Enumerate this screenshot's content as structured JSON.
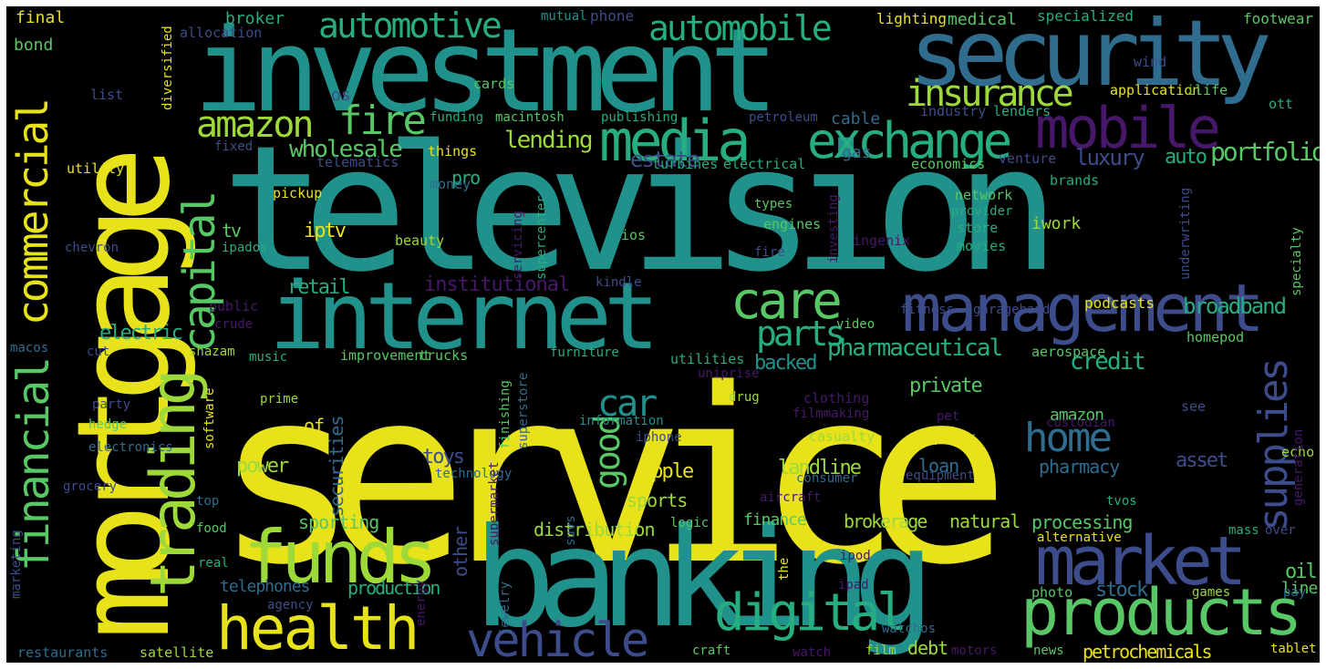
{
  "palette": {
    "background": "#000000",
    "yellow": "#e8e21a",
    "lime": "#9ed93a",
    "green": "#58c765",
    "aqua": "#26ad81",
    "teal": "#21918c",
    "blue": "#2f6c8e",
    "indigo": "#3d4c8a",
    "purple": "#471769"
  },
  "words": [
    {
      "text": "service",
      "color": "yellow"
    },
    {
      "text": "television",
      "color": "teal"
    },
    {
      "text": "mortgage",
      "color": "yellow"
    },
    {
      "text": "investment",
      "color": "teal"
    },
    {
      "text": "banking",
      "color": "teal"
    },
    {
      "text": "internet",
      "color": "teal"
    },
    {
      "text": "security",
      "color": "blue"
    },
    {
      "text": "management",
      "color": "indigo"
    },
    {
      "text": "products",
      "color": "green"
    },
    {
      "text": "funds",
      "color": "lime"
    },
    {
      "text": "market",
      "color": "indigo"
    },
    {
      "text": "health",
      "color": "yellow"
    },
    {
      "text": "trading",
      "color": "lime"
    },
    {
      "text": "media",
      "color": "aqua"
    },
    {
      "text": "exchange",
      "color": "aqua"
    },
    {
      "text": "mobile",
      "color": "purple"
    },
    {
      "text": "digital",
      "color": "aqua"
    },
    {
      "text": "vehicle",
      "color": "indigo"
    },
    {
      "text": "care",
      "color": "green"
    },
    {
      "text": "commercial",
      "color": "yellow"
    },
    {
      "text": "financial",
      "color": "green"
    },
    {
      "text": "capital",
      "color": "green"
    },
    {
      "text": "automotive",
      "color": "aqua"
    },
    {
      "text": "automobile",
      "color": "aqua"
    },
    {
      "text": "amazon",
      "color": "lime"
    },
    {
      "text": "fire",
      "color": "green"
    },
    {
      "text": "insurance",
      "color": "lime"
    },
    {
      "text": "home",
      "color": "blue"
    },
    {
      "text": "supplies",
      "color": "indigo"
    },
    {
      "text": "parts",
      "color": "aqua"
    },
    {
      "text": "car",
      "color": "teal"
    },
    {
      "text": "good",
      "color": "green"
    },
    {
      "text": "lending",
      "color": "lime"
    },
    {
      "text": "wholesale",
      "color": "green"
    },
    {
      "text": "pharmaceutical",
      "color": "aqua"
    },
    {
      "text": "portfolio",
      "color": "green"
    },
    {
      "text": "broadband",
      "color": "aqua"
    },
    {
      "text": "estate",
      "color": "indigo"
    },
    {
      "text": "luxury",
      "color": "indigo"
    },
    {
      "text": "auto",
      "color": "aqua"
    },
    {
      "text": "credit",
      "color": "aqua"
    },
    {
      "text": "institutional",
      "color": "purple"
    },
    {
      "text": "retail",
      "color": "aqua"
    },
    {
      "text": "electric",
      "color": "aqua"
    },
    {
      "text": "iptv",
      "color": "yellow"
    },
    {
      "text": "tv",
      "color": "green"
    },
    {
      "text": "pro",
      "color": "aqua"
    },
    {
      "text": "backed",
      "color": "teal"
    },
    {
      "text": "private",
      "color": "green"
    },
    {
      "text": "securities",
      "color": "blue"
    },
    {
      "text": "toys",
      "color": "indigo"
    },
    {
      "text": "apple",
      "color": "yellow"
    },
    {
      "text": "landline",
      "color": "lime"
    },
    {
      "text": "amazon",
      "color": "green"
    },
    {
      "text": "pharmacy",
      "color": "blue"
    },
    {
      "text": "asset",
      "color": "indigo"
    },
    {
      "text": "power",
      "color": "lime"
    },
    {
      "text": "sports",
      "color": "lime"
    },
    {
      "text": "loan",
      "color": "blue"
    },
    {
      "text": "debt",
      "color": "lime"
    },
    {
      "text": "sporting",
      "color": "green"
    },
    {
      "text": "distribution",
      "color": "lime"
    },
    {
      "text": "finance",
      "color": "green"
    },
    {
      "text": "brokerage",
      "color": "lime"
    },
    {
      "text": "natural",
      "color": "lime"
    },
    {
      "text": "processing",
      "color": "green"
    },
    {
      "text": "telephones",
      "color": "blue"
    },
    {
      "text": "production",
      "color": "aqua"
    },
    {
      "text": "stock",
      "color": "blue"
    },
    {
      "text": "oil",
      "color": "green"
    },
    {
      "text": "line",
      "color": "green"
    },
    {
      "text": "petrochemicals",
      "color": "yellow"
    },
    {
      "text": "of",
      "color": "yellow"
    },
    {
      "text": "other",
      "color": "indigo"
    },
    {
      "text": "broker",
      "color": "aqua"
    },
    {
      "text": "phone",
      "color": "indigo"
    },
    {
      "text": "medical",
      "color": "green"
    },
    {
      "text": "lighting",
      "color": "yellow"
    },
    {
      "text": "specialized",
      "color": "aqua"
    },
    {
      "text": "footwear",
      "color": "green"
    },
    {
      "text": "final",
      "color": "yellow"
    },
    {
      "text": "bond",
      "color": "green"
    },
    {
      "text": "mutual",
      "color": "teal"
    },
    {
      "text": "allocation",
      "color": "indigo"
    },
    {
      "text": "os",
      "color": "indigo"
    },
    {
      "text": "cards",
      "color": "green"
    },
    {
      "text": "list",
      "color": "indigo"
    },
    {
      "text": "funding",
      "color": "aqua"
    },
    {
      "text": "macintosh",
      "color": "green"
    },
    {
      "text": "publishing",
      "color": "aqua"
    },
    {
      "text": "petroleum",
      "color": "indigo"
    },
    {
      "text": "cable",
      "color": "blue"
    },
    {
      "text": "industry",
      "color": "indigo"
    },
    {
      "text": "lenders",
      "color": "aqua"
    },
    {
      "text": "application",
      "color": "yellow"
    },
    {
      "text": "ilife",
      "color": "green"
    },
    {
      "text": "wind",
      "color": "indigo"
    },
    {
      "text": "ott",
      "color": "aqua"
    },
    {
      "text": "fixed",
      "color": "indigo"
    },
    {
      "text": "things",
      "color": "yellow"
    },
    {
      "text": "telematics",
      "color": "indigo"
    },
    {
      "text": "turbines",
      "color": "aqua"
    },
    {
      "text": "electrical",
      "color": "aqua"
    },
    {
      "text": "gas",
      "color": "blue"
    },
    {
      "text": "economics",
      "color": "green"
    },
    {
      "text": "venture",
      "color": "indigo"
    },
    {
      "text": "utility",
      "color": "yellow"
    },
    {
      "text": "money",
      "color": "blue"
    },
    {
      "text": "pickup",
      "color": "yellow"
    },
    {
      "text": "types",
      "color": "green"
    },
    {
      "text": "network",
      "color": "green"
    },
    {
      "text": "brands",
      "color": "aqua"
    },
    {
      "text": "provider",
      "color": "aqua"
    },
    {
      "text": "engines",
      "color": "green"
    },
    {
      "text": "store",
      "color": "aqua"
    },
    {
      "text": "iwork",
      "color": "lime"
    },
    {
      "text": "beauty",
      "color": "lime"
    },
    {
      "text": "ios",
      "color": "green"
    },
    {
      "text": "ingenix",
      "color": "purple"
    },
    {
      "text": "movies",
      "color": "aqua"
    },
    {
      "text": "ipados",
      "color": "aqua"
    },
    {
      "text": "chevron",
      "color": "indigo"
    },
    {
      "text": "fire",
      "color": "indigo"
    },
    {
      "text": "kindle",
      "color": "indigo"
    },
    {
      "text": "public",
      "color": "purple"
    },
    {
      "text": "fitness",
      "color": "indigo"
    },
    {
      "text": "garageband",
      "color": "indigo"
    },
    {
      "text": "podcasts",
      "color": "yellow"
    },
    {
      "text": "crude",
      "color": "purple"
    },
    {
      "text": "video",
      "color": "green"
    },
    {
      "text": "homepod",
      "color": "green"
    },
    {
      "text": "macos",
      "color": "blue"
    },
    {
      "text": "cut",
      "color": "indigo"
    },
    {
      "text": "shazam",
      "color": "lime"
    },
    {
      "text": "music",
      "color": "aqua"
    },
    {
      "text": "improvement",
      "color": "green"
    },
    {
      "text": "trucks",
      "color": "green"
    },
    {
      "text": "utilities",
      "color": "aqua"
    },
    {
      "text": "furniture",
      "color": "aqua"
    },
    {
      "text": "aerospace",
      "color": "green"
    },
    {
      "text": "uniprise",
      "color": "purple"
    },
    {
      "text": "prime",
      "color": "lime"
    },
    {
      "text": "drug",
      "color": "lime"
    },
    {
      "text": "clothing",
      "color": "purple"
    },
    {
      "text": "filmmaking",
      "color": "purple"
    },
    {
      "text": "see",
      "color": "indigo"
    },
    {
      "text": "echo",
      "color": "lime"
    },
    {
      "text": "party",
      "color": "indigo"
    },
    {
      "text": "hedge",
      "color": "green"
    },
    {
      "text": "information",
      "color": "teal"
    },
    {
      "text": "custodian",
      "color": "purple"
    },
    {
      "text": "pet",
      "color": "purple"
    },
    {
      "text": "iphone",
      "color": "indigo"
    },
    {
      "text": "casualty",
      "color": "lime"
    },
    {
      "text": "property",
      "color": "yellow"
    },
    {
      "text": "electronics",
      "color": "blue"
    },
    {
      "text": "technology",
      "color": "blue"
    },
    {
      "text": "consumer",
      "color": "blue"
    },
    {
      "text": "equipment",
      "color": "indigo"
    },
    {
      "text": "grocery",
      "color": "indigo"
    },
    {
      "text": "top",
      "color": "blue"
    },
    {
      "text": "aircraft",
      "color": "purple"
    },
    {
      "text": "tvos",
      "color": "aqua"
    },
    {
      "text": "food",
      "color": "green"
    },
    {
      "text": "logic",
      "color": "green"
    },
    {
      "text": "alternative",
      "color": "yellow"
    },
    {
      "text": "mass",
      "color": "aqua"
    },
    {
      "text": "over",
      "color": "indigo"
    },
    {
      "text": "real",
      "color": "aqua"
    },
    {
      "text": "ipod",
      "color": "purple"
    },
    {
      "text": "ipad",
      "color": "purple"
    },
    {
      "text": "games",
      "color": "lime"
    },
    {
      "text": "pay",
      "color": "blue"
    },
    {
      "text": "agency",
      "color": "indigo"
    },
    {
      "text": "photo",
      "color": "green"
    },
    {
      "text": "watchos",
      "color": "blue"
    },
    {
      "text": "restaurants",
      "color": "blue"
    },
    {
      "text": "satellite",
      "color": "lime"
    },
    {
      "text": "craft",
      "color": "green"
    },
    {
      "text": "watch",
      "color": "purple"
    },
    {
      "text": "film",
      "color": "lime"
    },
    {
      "text": "motors",
      "color": "purple"
    },
    {
      "text": "news",
      "color": "green"
    },
    {
      "text": "tablet",
      "color": "yellow"
    },
    {
      "text": "diversified",
      "color": "yellow"
    },
    {
      "text": "investing",
      "color": "purple"
    },
    {
      "text": "servicing",
      "color": "purple"
    },
    {
      "text": "supercenter",
      "color": "aqua"
    },
    {
      "text": "underwriting",
      "color": "indigo"
    },
    {
      "text": "specialty",
      "color": "green"
    },
    {
      "text": "software",
      "color": "yellow"
    },
    {
      "text": "finishing",
      "color": "green"
    },
    {
      "text": "superstore",
      "color": "blue"
    },
    {
      "text": "supermarket",
      "color": "purple"
    },
    {
      "text": "jewelry",
      "color": "blue"
    },
    {
      "text": "suvs",
      "color": "blue"
    },
    {
      "text": "the",
      "color": "yellow"
    },
    {
      "text": "generation",
      "color": "purple"
    },
    {
      "text": "energy",
      "color": "purple"
    },
    {
      "text": "marketing",
      "color": "indigo"
    }
  ]
}
